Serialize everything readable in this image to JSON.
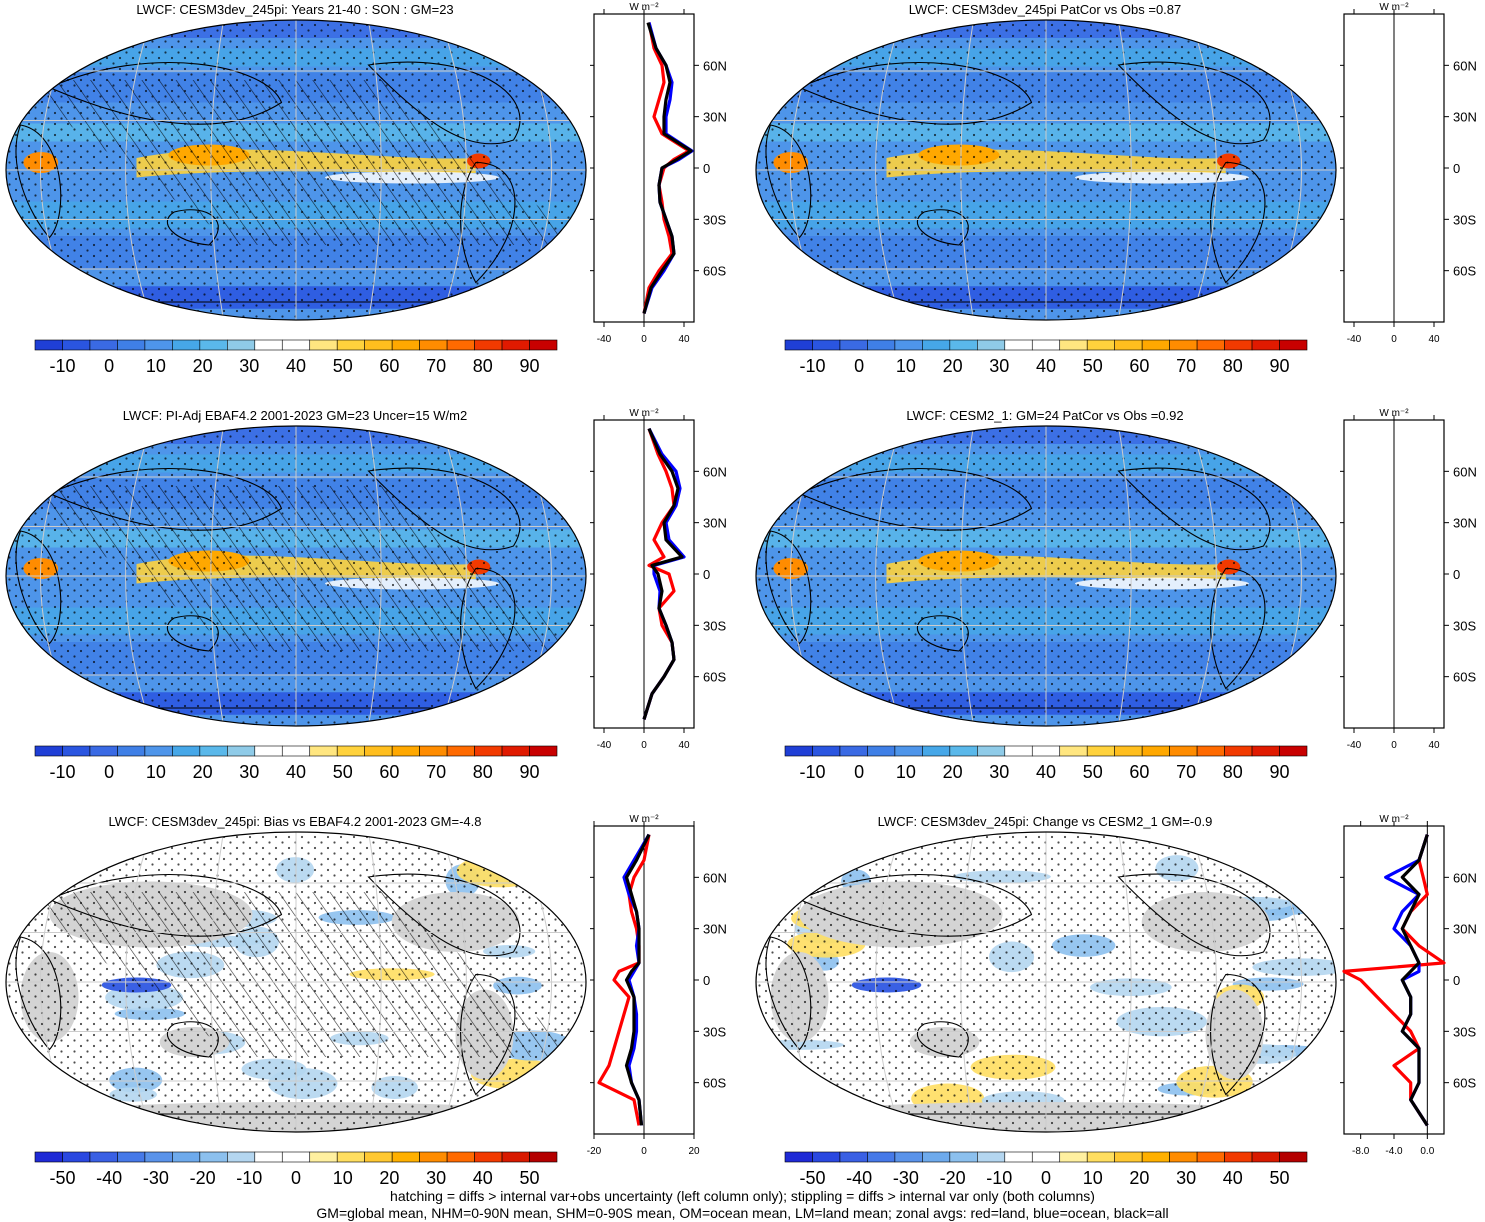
{
  "colors": {
    "abs_scale": [
      "#1f3fd6",
      "#2a55e0",
      "#3a6ae4",
      "#3f7fe6",
      "#4e95ea",
      "#46a7e8",
      "#5ab8ea",
      "#8fcbe8",
      "#ffffff",
      "#ffffff",
      "#ffe680",
      "#ffd23c",
      "#ffbe1e",
      "#ffa800",
      "#ff8c00",
      "#ff6a00",
      "#f23a00",
      "#e01a00",
      "#c80000"
    ],
    "diff_scale": [
      "#1f2ad6",
      "#2a48e0",
      "#3a60e4",
      "#4679e8",
      "#5a93ea",
      "#6eaaec",
      "#8cc0ee",
      "#b4d6f0",
      "#ffffff",
      "#ffffff",
      "#fff0a0",
      "#ffde60",
      "#ffc832",
      "#ffb000",
      "#ff8c00",
      "#ff6a00",
      "#f23a00",
      "#d81a00",
      "#b40000"
    ],
    "land": "#d4d4d4",
    "land_line": "red",
    "ocean_line": "blue",
    "all_line": "black"
  },
  "panels": [
    {
      "id": "top-left",
      "title": "LWCF: CESM3dev_245pi: Years 21-40 : SON : GM=23",
      "kind": "abs",
      "hatch": true,
      "zonal_unit": "W m⁻²",
      "zonal_xticks": [
        "-40",
        "0",
        "40"
      ],
      "zonal_xrange": [
        -50,
        50
      ],
      "cbar_labels": [
        "-10",
        "0",
        "10",
        "20",
        "30",
        "40",
        "50",
        "60",
        "70",
        "80",
        "90"
      ]
    },
    {
      "id": "top-right",
      "title": "LWCF: CESM3dev_245pi PatCor vs Obs =0.87",
      "kind": "abs",
      "hatch": false,
      "zonal_unit": "W m⁻²",
      "zonal_xticks": [
        "-40",
        "0",
        "40"
      ],
      "zonal_xrange": [
        -50,
        50
      ],
      "cbar_labels": [
        "-10",
        "0",
        "10",
        "20",
        "30",
        "40",
        "50",
        "60",
        "70",
        "80",
        "90"
      ]
    },
    {
      "id": "mid-left",
      "title": "LWCF: PI-Adj EBAF4.2 2001-2023 GM=23 Uncer=15 W/m2",
      "kind": "abs",
      "hatch": true,
      "zonal_unit": "W m⁻²",
      "zonal_xticks": [
        "-40",
        "0",
        "40"
      ],
      "zonal_xrange": [
        -50,
        50
      ],
      "cbar_labels": [
        "-10",
        "0",
        "10",
        "20",
        "30",
        "40",
        "50",
        "60",
        "70",
        "80",
        "90"
      ]
    },
    {
      "id": "mid-right",
      "title": "LWCF: CESM2_1: GM=24 PatCor vs Obs =0.92",
      "kind": "abs",
      "hatch": false,
      "zonal_unit": "W m⁻²",
      "zonal_xticks": [
        "-40",
        "0",
        "40"
      ],
      "zonal_xrange": [
        -50,
        50
      ],
      "cbar_labels": [
        "-10",
        "0",
        "10",
        "20",
        "30",
        "40",
        "50",
        "60",
        "70",
        "80",
        "90"
      ]
    },
    {
      "id": "bottom-left",
      "title": "LWCF: CESM3dev_245pi: Bias vs EBAF4.2 2001-2023  GM=-4.8",
      "kind": "diff",
      "hatch": true,
      "zonal_unit": "W m⁻²",
      "zonal_xticks": [
        "-20",
        "0",
        "20"
      ],
      "zonal_xrange": [
        -20,
        20
      ],
      "cbar_labels": [
        "-50",
        "-40",
        "-30",
        "-20",
        "-10",
        "0",
        "10",
        "20",
        "30",
        "40",
        "50"
      ]
    },
    {
      "id": "bottom-right",
      "title": "LWCF: CESM3dev_245pi: Change vs CESM2_1 GM=-0.9",
      "kind": "diff",
      "hatch": false,
      "zonal_unit": "W m⁻²",
      "zonal_xticks": [
        "-8.0",
        "-4.0",
        "0.0"
      ],
      "zonal_xrange": [
        -10,
        2
      ],
      "cbar_labels": [
        "-50",
        "-40",
        "-30",
        "-20",
        "-10",
        "0",
        "10",
        "20",
        "30",
        "40",
        "50"
      ]
    }
  ],
  "lat_labels": [
    "60N",
    "30N",
    "0",
    "30S",
    "60S"
  ],
  "chart_data": {
    "type": "line",
    "x_axis": "W m⁻²",
    "y_axis_ticks": [
      "60N",
      "30N",
      "0",
      "30S",
      "60S"
    ],
    "series_keys": [
      "land (red)",
      "ocean (blue)",
      "all (black)"
    ],
    "zonal_profiles": [
      {
        "panel": "top-left",
        "lat": [
          85,
          70,
          60,
          50,
          40,
          30,
          20,
          10,
          5,
          0,
          -10,
          -20,
          -30,
          -40,
          -50,
          -60,
          -70,
          -85
        ],
        "land": [
          5,
          10,
          18,
          20,
          15,
          10,
          18,
          45,
          30,
          20,
          15,
          18,
          20,
          25,
          28,
          15,
          5,
          0
        ],
        "ocean": [
          5,
          12,
          22,
          28,
          26,
          22,
          22,
          48,
          35,
          18,
          15,
          16,
          22,
          28,
          30,
          20,
          8,
          0
        ],
        "all": [
          4,
          12,
          22,
          26,
          22,
          20,
          20,
          47,
          33,
          18,
          15,
          16,
          22,
          28,
          30,
          18,
          7,
          0
        ]
      },
      {
        "panel": "mid-left",
        "lat": [
          85,
          70,
          60,
          50,
          40,
          30,
          20,
          10,
          5,
          0,
          -10,
          -20,
          -30,
          -40,
          -50,
          -60,
          -70,
          -85
        ],
        "land": [
          5,
          14,
          22,
          28,
          30,
          18,
          10,
          20,
          5,
          25,
          30,
          15,
          18,
          28,
          30,
          20,
          8,
          0
        ],
        "ocean": [
          5,
          18,
          32,
          36,
          32,
          22,
          25,
          40,
          10,
          10,
          16,
          15,
          22,
          28,
          30,
          20,
          8,
          0
        ],
        "all": [
          5,
          16,
          28,
          34,
          30,
          20,
          22,
          38,
          8,
          14,
          18,
          15,
          22,
          28,
          30,
          20,
          8,
          0
        ]
      },
      {
        "panel": "bottom-left",
        "lat": [
          85,
          70,
          60,
          50,
          40,
          30,
          20,
          10,
          5,
          0,
          -10,
          -20,
          -30,
          -40,
          -50,
          -60,
          -70,
          -85
        ],
        "land": [
          2,
          0,
          -4,
          -6,
          -5,
          -3,
          -2,
          -2,
          -10,
          -12,
          -6,
          -8,
          -10,
          -12,
          -14,
          -18,
          -4,
          -2
        ],
        "ocean": [
          2,
          -4,
          -8,
          -6,
          -3,
          -2,
          -3,
          -2,
          -4,
          -6,
          -4,
          -3,
          -3,
          -4,
          -6,
          -5,
          -2,
          -1
        ],
        "all": [
          2,
          -3,
          -7,
          -5,
          -3,
          -2,
          -2,
          -2,
          -5,
          -7,
          -4,
          -4,
          -4,
          -5,
          -7,
          -5,
          -2,
          -1
        ]
      },
      {
        "panel": "bottom-right",
        "lat": [
          85,
          70,
          60,
          50,
          40,
          30,
          20,
          10,
          5,
          0,
          -10,
          -20,
          -30,
          -40,
          -50,
          -60,
          -70,
          -85
        ],
        "land": [
          0,
          -1,
          -0.5,
          0,
          -2,
          -3,
          -1,
          2,
          -10,
          -8,
          -6,
          -4,
          -2,
          -1,
          -4,
          -2,
          -2,
          0
        ],
        "ocean": [
          0,
          -1,
          -5,
          -1,
          -3,
          -4,
          -2,
          -1,
          -1,
          -3,
          -2,
          -2,
          -3,
          -1,
          -1,
          -1,
          -2,
          0
        ],
        "all": [
          0,
          -1,
          -3,
          -1,
          -2,
          -3,
          -2,
          -1,
          -2,
          -3,
          -2,
          -2,
          -3,
          -1,
          -1,
          -1,
          -2,
          0
        ]
      }
    ]
  },
  "footer": {
    "line1": "hatching = diffs > internal var+obs uncertainty (left column only); stippling = diffs > internal var only (both columns)",
    "line2": "GM=global mean, NHM=0-90N mean, SHM=0-90S mean, OM=ocean mean, LM=land mean; zonal avgs: red=land, blue=ocean, black=all"
  }
}
